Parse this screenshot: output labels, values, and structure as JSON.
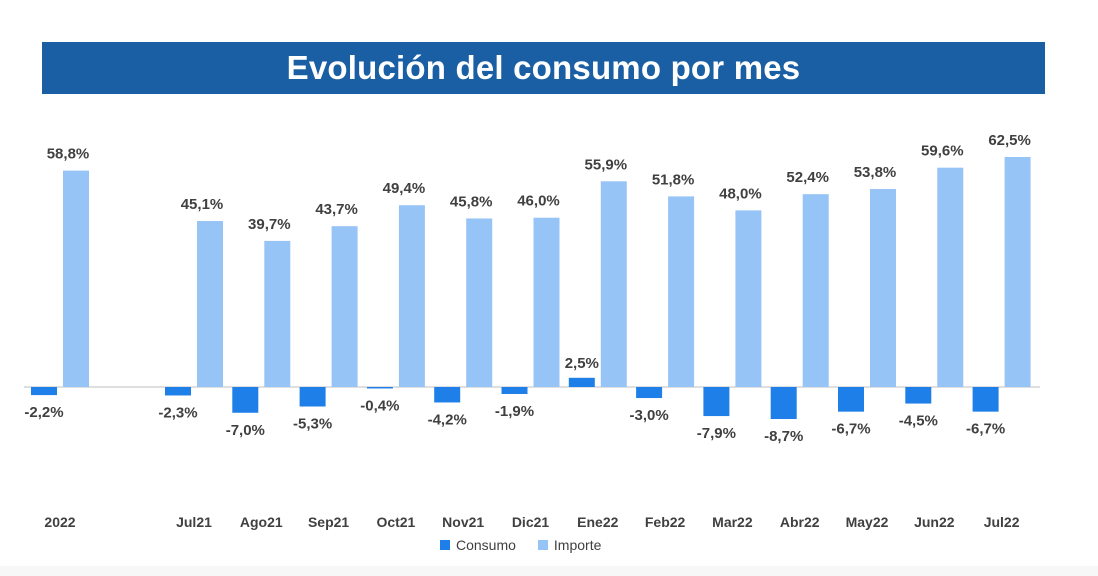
{
  "chart_data": {
    "type": "bar",
    "title": "Evolución del consumo por mes",
    "categories": [
      "2022",
      "Jul21",
      "Ago21",
      "Sep21",
      "Oct21",
      "Nov21",
      "Dic21",
      "Ene22",
      "Feb22",
      "Mar22",
      "Abr22",
      "May22",
      "Jun22",
      "Jul22"
    ],
    "series": [
      {
        "name": "Consumo",
        "color": "#1f7fe8",
        "values": [
          -2.2,
          -2.3,
          -7.0,
          -5.3,
          -0.4,
          -4.2,
          -1.9,
          2.5,
          -3.0,
          -7.9,
          -8.7,
          -6.7,
          -4.5,
          -6.7
        ],
        "labels": [
          "-2,2%",
          "-2,3%",
          "-7,0%",
          "-5,3%",
          "-0,4%",
          "-4,2%",
          "-1,9%",
          "2,5%",
          "-3,0%",
          "-7,9%",
          "-8,7%",
          "-6,7%",
          "-4,5%",
          "-6,7%"
        ]
      },
      {
        "name": "Importe",
        "color": "#97c4f6",
        "values": [
          58.8,
          45.1,
          39.7,
          43.7,
          49.4,
          45.8,
          46.0,
          55.9,
          51.8,
          48.0,
          52.4,
          53.8,
          59.6,
          62.5
        ],
        "labels": [
          "58,8%",
          "45,1%",
          "39,7%",
          "43,7%",
          "49,4%",
          "45,8%",
          "46,0%",
          "55,9%",
          "51,8%",
          "48,0%",
          "52,4%",
          "53,8%",
          "59,6%",
          "62,5%"
        ]
      }
    ],
    "legend_position": "bottom",
    "grid": false
  }
}
